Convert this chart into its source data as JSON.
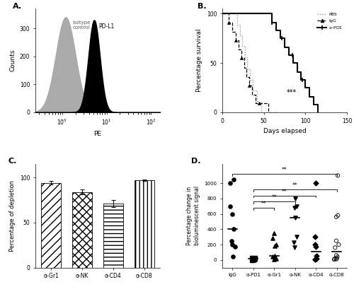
{
  "panel_A": {
    "xlabel": "PE",
    "ylabel": "Counts",
    "yticks": [
      0,
      100,
      200,
      300
    ],
    "isotype_mu_log": 0.08,
    "isotype_sigma_log": 0.22,
    "isotype_height": 340,
    "pdl1_mu_log": 0.72,
    "pdl1_sigma_log": 0.13,
    "pdl1_height": 330
  },
  "panel_B": {
    "pbs_times": [
      0,
      15,
      18,
      21,
      24,
      27,
      30,
      33,
      37,
      42,
      47,
      52,
      57,
      62,
      67
    ],
    "pbs_surv": [
      100,
      100,
      89,
      78,
      67,
      56,
      44,
      33,
      22,
      11,
      0,
      0,
      0,
      0,
      0
    ],
    "igg_times": [
      0,
      8,
      12,
      16,
      20,
      23,
      26,
      29,
      32,
      36,
      40,
      44,
      48,
      55,
      62,
      67
    ],
    "igg_surv": [
      100,
      91,
      82,
      73,
      64,
      55,
      45,
      36,
      27,
      18,
      9,
      9,
      9,
      0,
      0,
      0
    ],
    "apd1_times": [
      0,
      50,
      60,
      65,
      70,
      75,
      80,
      85,
      90,
      95,
      100,
      105,
      110,
      115
    ],
    "apd1_surv": [
      100,
      100,
      91,
      83,
      75,
      66,
      58,
      50,
      41,
      33,
      25,
      16,
      8,
      0
    ],
    "xlabel": "Days elapsed",
    "ylabel": "Percentage survival",
    "xlim": [
      0,
      150
    ],
    "ylim": [
      0,
      105
    ],
    "yticks": [
      0,
      50,
      100
    ],
    "xticks": [
      0,
      50,
      100,
      150
    ],
    "sig_text": "***",
    "sig_x": 83,
    "sig_y": 18
  },
  "panel_C": {
    "categories": [
      "α-Gr1",
      "α-NK",
      "α-CD4",
      "α-CD8"
    ],
    "values": [
      94,
      84,
      71,
      97
    ],
    "errors": [
      2,
      3,
      4,
      1
    ],
    "ylabel": "Percentage of depletion",
    "ylim": [
      0,
      115
    ],
    "yticks": [
      0,
      50,
      100
    ]
  },
  "panel_D": {
    "groups": [
      "IgG",
      "α-PD1",
      "α-Gr1",
      "α-NK",
      "α-CD4",
      "α-CD8"
    ],
    "IgG_vals": [
      1000,
      1050,
      600,
      400,
      170,
      40,
      200,
      700,
      250
    ],
    "aPD1_vals": [
      -10,
      -5,
      0,
      5,
      30,
      25,
      35,
      28,
      32,
      10,
      -8,
      20
    ],
    "aGr1_vals": [
      20,
      40,
      180,
      200,
      280,
      350,
      25,
      55,
      10
    ],
    "aNK_vals": [
      230,
      550,
      680,
      800,
      160,
      700,
      300
    ],
    "aCD4_vals": [
      10,
      50,
      200,
      170,
      300,
      20,
      5,
      1000
    ],
    "aCD8_vals": [
      1100,
      250,
      200,
      160,
      580,
      560,
      60,
      40,
      20,
      10,
      5,
      15
    ],
    "ylabel": "Percentage change in\nbioluminescent signal",
    "ylim": [
      -100,
      1250
    ],
    "yticks": [
      0,
      200,
      400,
      600,
      800,
      1000
    ],
    "sig_lines": [
      {
        "x1": 1,
        "x2": 2,
        "y": 680,
        "text": "**"
      },
      {
        "x1": 1,
        "x2": 3,
        "y": 760,
        "text": "**"
      },
      {
        "x1": 1,
        "x2": 4,
        "y": 840,
        "text": "**"
      },
      {
        "x1": 1,
        "x2": 5,
        "y": 920,
        "text": "**"
      },
      {
        "x1": 0,
        "x2": 5,
        "y": 1120,
        "text": "**"
      }
    ]
  }
}
